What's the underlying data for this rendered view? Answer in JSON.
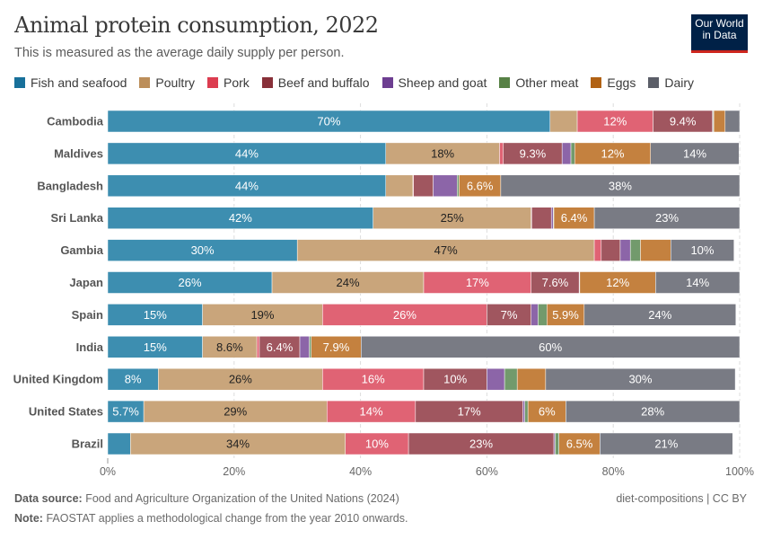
{
  "header": {
    "title": "Animal protein consumption, 2022",
    "subtitle": "This is measured as the average daily supply per person.",
    "logo": "Our World in Data"
  },
  "footer": {
    "source_label": "Data source:",
    "source": "Food and Agriculture Organization of the United Nations (2024)",
    "note_label": "Note:",
    "note": "FAOSTAT applies a methodological change from the year 2010 onwards.",
    "credit": "diet-compositions | CC BY"
  },
  "chart_data": {
    "type": "bar",
    "orientation": "horizontal",
    "stacked": true,
    "title": "Animal protein consumption, 2022",
    "subtitle": "This is measured as the average daily supply per person.",
    "xlim": [
      0,
      100
    ],
    "x_ticks": [
      "0%",
      "20%",
      "40%",
      "60%",
      "80%",
      "100%"
    ],
    "grid": true,
    "legend_position": "top",
    "categories": [
      "Cambodia",
      "Maldives",
      "Bangladesh",
      "Sri Lanka",
      "Gambia",
      "Japan",
      "Spain",
      "India",
      "United Kingdom",
      "United States",
      "Brazil"
    ],
    "series": [
      {
        "name": "Fish and seafood",
        "color": "#3d8eb0",
        "legend_color": "#18709a",
        "values": [
          70,
          44,
          44,
          42,
          30,
          26,
          15,
          15,
          8,
          5.7,
          3.6
        ]
      },
      {
        "name": "Poultry",
        "color": "#c9a57b",
        "legend_color": "#bc8e5a",
        "values": [
          4.3,
          18,
          4.3,
          25,
          47,
          24,
          19,
          8.6,
          26,
          29,
          34
        ]
      },
      {
        "name": "Pork",
        "color": "#e06374",
        "legend_color": "#dc3d50",
        "values": [
          12,
          0.6,
          0.1,
          0.1,
          1.1,
          17,
          26,
          0.4,
          16,
          14,
          10
        ]
      },
      {
        "name": "Beef and buffalo",
        "color": "#a0565f",
        "legend_color": "#883039",
        "values": [
          9.4,
          9.3,
          3.1,
          3.1,
          3,
          7.6,
          7,
          6.4,
          10,
          17,
          23
        ]
      },
      {
        "name": "Sheep and goat",
        "color": "#8c65a8",
        "legend_color": "#6d3e91",
        "values": [
          0.1,
          1.4,
          3.8,
          0.3,
          1.6,
          0.1,
          1.1,
          1.5,
          2.8,
          0.3,
          0.2
        ]
      },
      {
        "name": "Other meat",
        "color": "#729a6c",
        "legend_color": "#578145",
        "values": [
          0.1,
          0.6,
          0.3,
          0.1,
          1.6,
          0,
          1.4,
          0.3,
          2,
          0.5,
          0.6
        ]
      },
      {
        "name": "Eggs",
        "color": "#c4813f",
        "legend_color": "#b16214",
        "values": [
          1.8,
          12,
          6.6,
          6.4,
          4.8,
          12,
          5.9,
          7.9,
          4.5,
          6,
          6.5
        ]
      },
      {
        "name": "Dairy",
        "color": "#797b84",
        "legend_color": "#5b5e68",
        "values": [
          3.1,
          14,
          38,
          23,
          10,
          14,
          24,
          60,
          30,
          28,
          21
        ]
      }
    ]
  }
}
